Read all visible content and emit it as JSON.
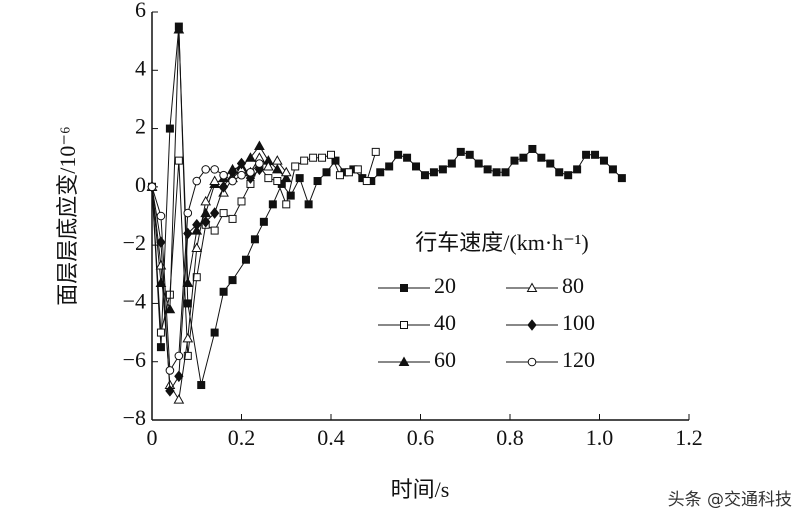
{
  "chart_data": {
    "type": "line",
    "ylabel": "面层层底应变/10⁻⁶",
    "xlabel": "时间/s",
    "legend_title": "行车速度/(km·h⁻¹)",
    "watermark": "头条 @交通科技",
    "xlim": [
      0,
      1.2
    ],
    "ylim": [
      -8,
      6
    ],
    "xticks": [
      0,
      0.2,
      0.4,
      0.6,
      0.8,
      {
        "value": 1,
        "label": "1.0"
      },
      1.2
    ],
    "yticks": [
      {
        "value": -8,
        "label": "−8"
      },
      {
        "value": -6,
        "label": "−6"
      },
      {
        "value": -4,
        "label": "−4"
      },
      {
        "value": -2,
        "label": "−2"
      },
      0,
      2,
      4,
      6
    ],
    "series": [
      {
        "name": "20",
        "color": "#111",
        "marker": "square",
        "filled": true,
        "x": [
          0,
          0.02,
          0.04,
          0.06,
          0.08,
          0.11,
          0.14,
          0.16,
          0.18,
          0.21,
          0.23,
          0.25,
          0.27,
          0.29,
          0.31,
          0.33,
          0.35,
          0.37,
          0.39,
          0.41,
          0.43,
          0.45,
          0.47,
          0.49,
          0.51,
          0.53,
          0.55,
          0.57,
          0.59,
          0.61,
          0.63,
          0.65,
          0.67,
          0.69,
          0.71,
          0.73,
          0.75,
          0.77,
          0.79,
          0.81,
          0.83,
          0.85,
          0.87,
          0.89,
          0.91,
          0.93,
          0.95,
          0.97,
          0.99,
          1.01,
          1.03,
          1.05
        ],
        "values": [
          0,
          -5.5,
          2,
          5.5,
          -4,
          -6.8,
          -5,
          -3.6,
          -3.2,
          -2.5,
          -1.8,
          -1.2,
          -0.6,
          0.1,
          -0.3,
          0.3,
          -0.6,
          0.2,
          0.5,
          0.9,
          0.5,
          0.6,
          0.3,
          0.2,
          0.5,
          0.7,
          1.1,
          1.0,
          0.7,
          0.4,
          0.5,
          0.6,
          0.8,
          1.2,
          1.1,
          0.8,
          0.6,
          0.5,
          0.5,
          0.9,
          1.0,
          1.3,
          1.0,
          0.8,
          0.5,
          0.4,
          0.6,
          1.1,
          1.1,
          0.9,
          0.6,
          0.3
        ]
      },
      {
        "name": "40",
        "color": "#111",
        "marker": "square",
        "filled": false,
        "x": [
          0,
          0.02,
          0.04,
          0.06,
          0.08,
          0.1,
          0.12,
          0.14,
          0.16,
          0.18,
          0.2,
          0.22,
          0.24,
          0.26,
          0.28,
          0.3,
          0.32,
          0.34,
          0.36,
          0.38,
          0.4,
          0.42,
          0.44,
          0.46,
          0.48,
          0.5
        ],
        "values": [
          0,
          -5,
          -3.7,
          0.9,
          -5.8,
          -3.1,
          -1.3,
          -1.5,
          -0.9,
          -1.1,
          -0.5,
          0.1,
          0.7,
          0.3,
          0.2,
          -0.6,
          0.7,
          0.9,
          1.0,
          1.0,
          1.1,
          0.4,
          0.5,
          0.6,
          0.2,
          1.2
        ]
      },
      {
        "name": "60",
        "color": "#111",
        "marker": "triangle",
        "filled": true,
        "x": [
          0,
          0.02,
          0.04,
          0.06,
          0.08,
          0.1,
          0.12,
          0.14,
          0.16,
          0.18,
          0.2,
          0.22,
          0.24,
          0.26,
          0.28,
          0.3
        ],
        "values": [
          0,
          -3.3,
          -4.2,
          5.4,
          -3.3,
          -1.5,
          -0.9,
          0.1,
          0.3,
          0.6,
          0.7,
          1.0,
          1.4,
          0.9,
          0.6,
          0.3
        ]
      },
      {
        "name": "80",
        "color": "#111",
        "marker": "triangle",
        "filled": false,
        "x": [
          0,
          0.02,
          0.04,
          0.06,
          0.08,
          0.1,
          0.12,
          0.14,
          0.16,
          0.18,
          0.2,
          0.22,
          0.24,
          0.26,
          0.28,
          0.3
        ],
        "values": [
          0,
          -2.7,
          -6.8,
          -7.3,
          -5.2,
          -2.1,
          -0.5,
          0.2,
          -0.2,
          0.3,
          0.6,
          0.5,
          1.0,
          0.7,
          0.9,
          0.5
        ]
      },
      {
        "name": "100",
        "color": "#111",
        "marker": "diamond",
        "filled": true,
        "x": [
          0,
          0.02,
          0.04,
          0.06,
          0.08,
          0.1,
          0.12,
          0.14,
          0.16,
          0.18,
          0.2,
          0.22,
          0.24
        ],
        "values": [
          0,
          -1.9,
          -7.0,
          -6.5,
          -1.6,
          -1.3,
          -1.2,
          -0.9,
          0.0,
          0.5,
          0.8,
          0.3,
          0.6
        ]
      },
      {
        "name": "120",
        "color": "#111",
        "marker": "circle",
        "filled": false,
        "x": [
          0,
          0.02,
          0.04,
          0.06,
          0.08,
          0.1,
          0.12,
          0.14,
          0.16,
          0.18,
          0.2,
          0.22,
          0.24
        ],
        "values": [
          0,
          -1.0,
          -6.3,
          -5.8,
          -0.9,
          0.2,
          0.6,
          0.6,
          0.4,
          0.2,
          0.4,
          0.5,
          0.8
        ]
      }
    ]
  }
}
